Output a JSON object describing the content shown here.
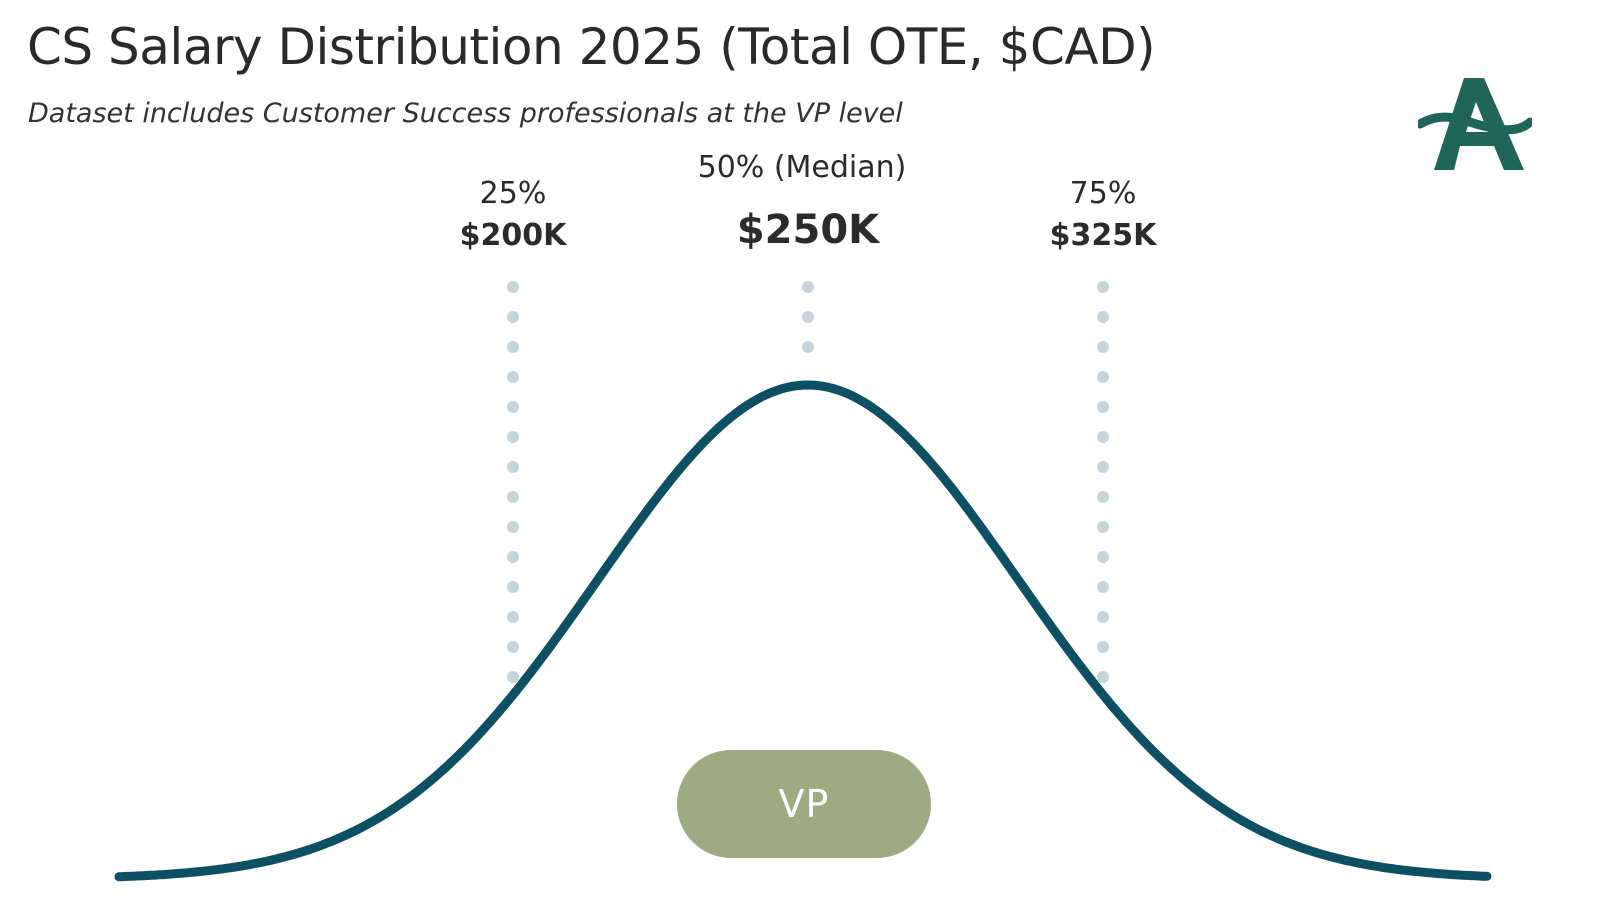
{
  "header": {
    "title": "CS Salary Distribution 2025 (Total OTE, $CAD)",
    "subtitle": "Dataset includes Customer Success professionals at the VP level"
  },
  "colors": {
    "curve": "#0d4f63",
    "markers": "#c5d4da",
    "pill": "#9eaa82",
    "logo": "#1f6659",
    "text": "#2b2b2b"
  },
  "chart_data": {
    "type": "distribution",
    "title": "CS Salary Distribution 2025 (Total OTE, $CAD)",
    "distribution": "normal",
    "currency": "$CAD",
    "percentiles": [
      {
        "id": "p25",
        "label": "25%",
        "display": "$200K",
        "value": 200000
      },
      {
        "id": "p50",
        "label": "50% (Median)",
        "display": "$250K",
        "value": 250000
      },
      {
        "id": "p75",
        "label": "75%",
        "display": "$325K",
        "value": 325000
      }
    ],
    "category": "VP"
  },
  "logo": {
    "name": "company-logo",
    "glyph": "A"
  }
}
